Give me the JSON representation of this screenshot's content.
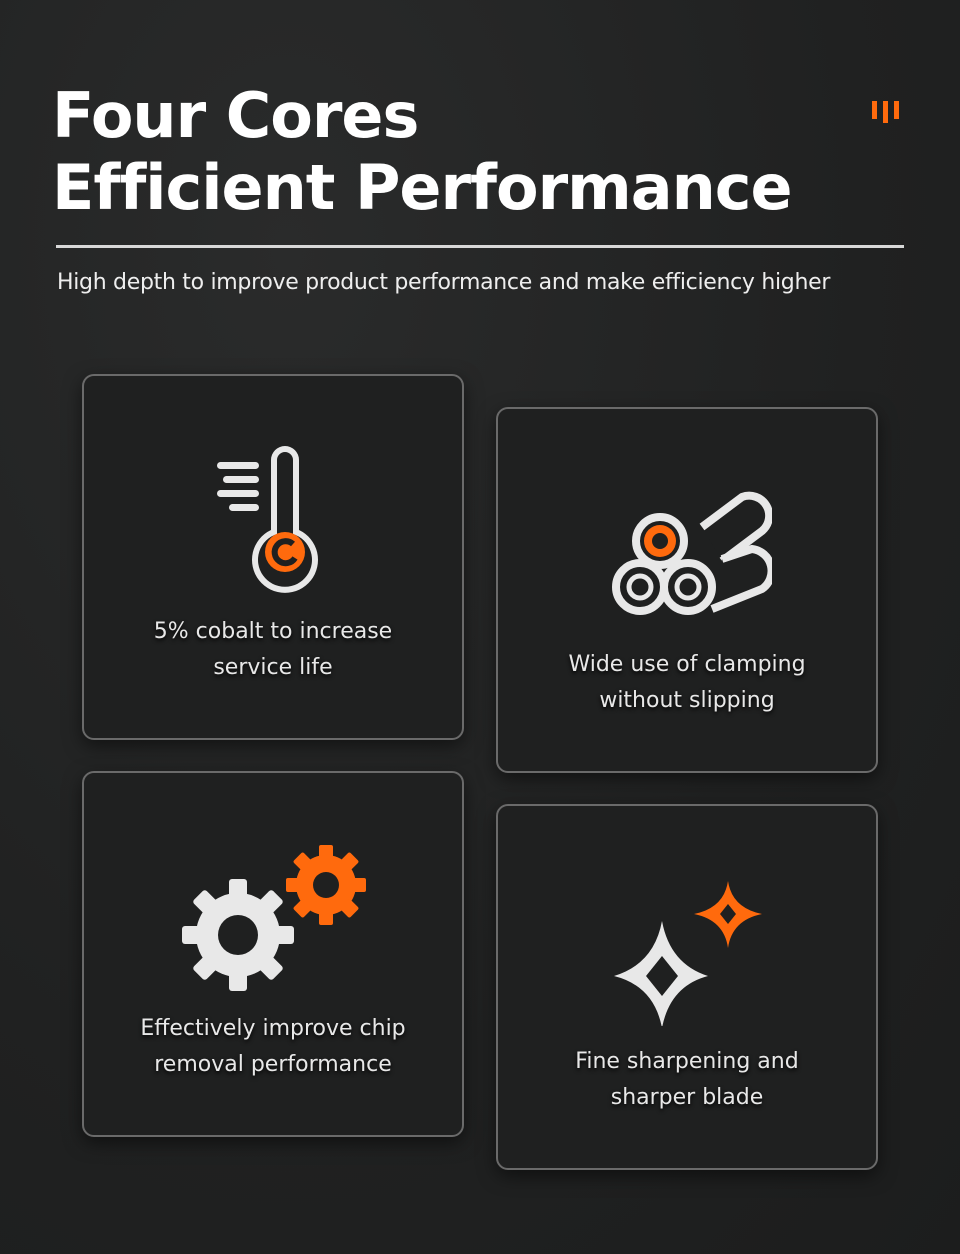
{
  "header": {
    "title_line1": "Four Cores",
    "title_line2": "Efficient Performance",
    "subtitle": "High depth to improve product performance and make efficiency higher"
  },
  "accent_color": "#ff6a0d",
  "features": [
    {
      "icon": "thermometer-icon",
      "line1": "5% cobalt to increase",
      "line2": "service life"
    },
    {
      "icon": "rods-icon",
      "line1": "Wide use of clamping",
      "line2": "without slipping"
    },
    {
      "icon": "gears-icon",
      "line1": "Effectively improve chip",
      "line2": "removal performance"
    },
    {
      "icon": "sparkle-icon",
      "line1": "Fine sharpening and",
      "line2": "sharper blade"
    }
  ]
}
